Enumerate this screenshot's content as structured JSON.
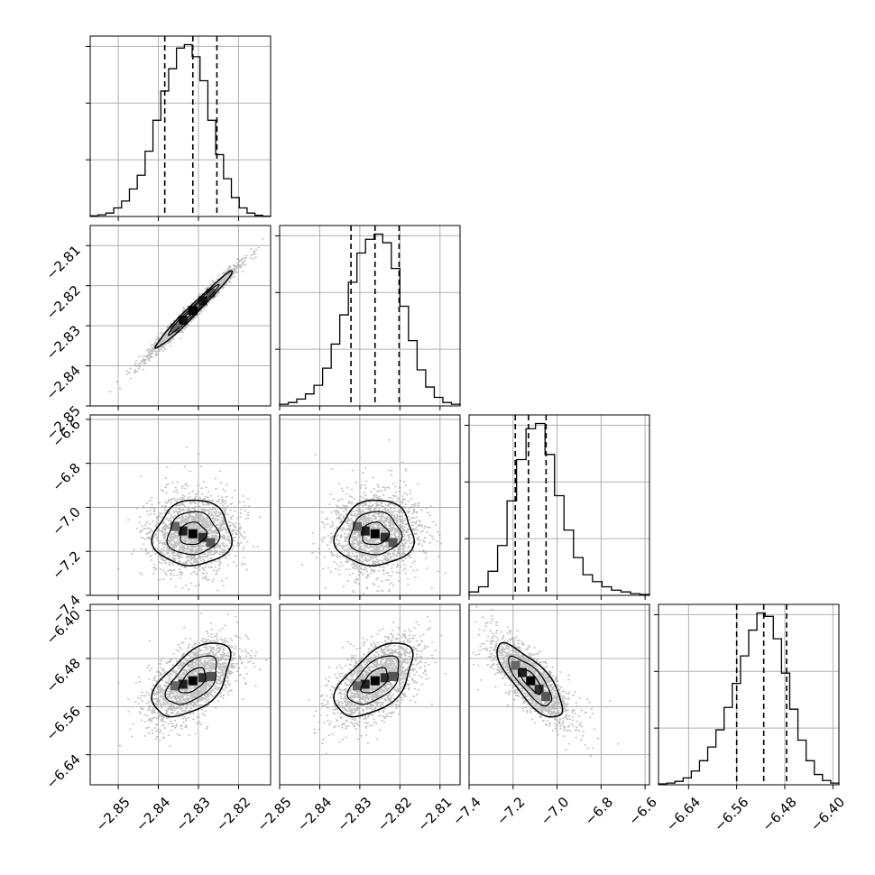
{
  "chart_data": {
    "type": "corner",
    "title": "",
    "variables": [
      {
        "range": [
          -2.857,
          -2.812
        ],
        "quantiles": [
          -2.8384,
          -2.8314,
          -2.8254
        ],
        "ticks": [
          -2.85,
          -2.84,
          -2.83,
          -2.82
        ],
        "tick_labels": [
          "−2.85",
          "−2.84",
          "−2.83",
          "−2.82"
        ]
      },
      {
        "range": [
          -2.85,
          -2.805
        ],
        "quantiles": [
          -2.8322,
          -2.8262,
          -2.8202
        ],
        "ticks": [
          -2.85,
          -2.84,
          -2.83,
          -2.82,
          -2.81
        ],
        "tick_labels": [
          "−2.85",
          "−2.84",
          "−2.83",
          "−2.82",
          "−2.81"
        ]
      },
      {
        "range": [
          -7.4,
          -6.58
        ],
        "quantiles": [
          -7.19,
          -7.13,
          -7.05
        ],
        "ticks": [
          -7.4,
          -7.2,
          -7.0,
          -6.8,
          -6.6
        ],
        "tick_labels": [
          "−7.4",
          "−7.2",
          "−7.0",
          "−6.8",
          "−6.6"
        ]
      },
      {
        "range": [
          -6.69,
          -6.39
        ],
        "quantiles": [
          -6.56,
          -6.515,
          -6.477
        ],
        "ticks": [
          -6.64,
          -6.56,
          -6.48,
          -6.4
        ],
        "tick_labels": [
          "−6.64",
          "−6.56",
          "−6.48",
          "−6.40"
        ]
      }
    ],
    "histograms": [
      [
        0.004,
        0.01,
        0.02,
        0.05,
        0.09,
        0.16,
        0.24,
        0.38,
        0.56,
        0.73,
        0.86,
        0.98,
        1.0,
        0.93,
        0.79,
        0.56,
        0.36,
        0.22,
        0.11,
        0.05,
        0.02,
        0.007,
        0.002
      ],
      [
        0.01,
        0.02,
        0.04,
        0.07,
        0.12,
        0.22,
        0.36,
        0.53,
        0.72,
        0.89,
        0.97,
        1.0,
        0.95,
        0.8,
        0.58,
        0.38,
        0.21,
        0.11,
        0.05,
        0.02,
        0.01
      ],
      [
        0.02,
        0.05,
        0.14,
        0.29,
        0.55,
        0.79,
        0.97,
        1.0,
        0.82,
        0.58,
        0.38,
        0.22,
        0.12,
        0.08,
        0.05,
        0.03,
        0.02,
        0.01,
        0.005
      ],
      [
        0.005,
        0.01,
        0.02,
        0.04,
        0.08,
        0.14,
        0.22,
        0.32,
        0.45,
        0.59,
        0.75,
        0.9,
        1.0,
        0.98,
        0.85,
        0.65,
        0.44,
        0.26,
        0.14,
        0.06,
        0.025,
        0.01
      ]
    ],
    "pairs": [
      {
        "row": 1,
        "col": 0,
        "mean": [
          -2.8314,
          -2.8262
        ],
        "sd": [
          0.0055,
          0.0055
        ],
        "rho": 0.985
      },
      {
        "row": 2,
        "col": 0,
        "mean": [
          -2.8314,
          -7.12
        ],
        "sd": [
          0.0055,
          0.085
        ],
        "rho": 0.05
      },
      {
        "row": 2,
        "col": 1,
        "mean": [
          -2.8262,
          -7.12
        ],
        "sd": [
          0.0055,
          0.085
        ],
        "rho": 0.05
      },
      {
        "row": 3,
        "col": 0,
        "mean": [
          -2.8314,
          -6.517
        ],
        "sd": [
          0.0055,
          0.035
        ],
        "rho": 0.55
      },
      {
        "row": 3,
        "col": 1,
        "mean": [
          -2.8262,
          -6.517
        ],
        "sd": [
          0.0055,
          0.035
        ],
        "rho": 0.55
      },
      {
        "row": 3,
        "col": 2,
        "mean": [
          -7.12,
          -6.517
        ],
        "sd": [
          0.085,
          0.035
        ],
        "rho": -0.78
      }
    ],
    "grid": true,
    "quantile_lines": "dashed"
  }
}
